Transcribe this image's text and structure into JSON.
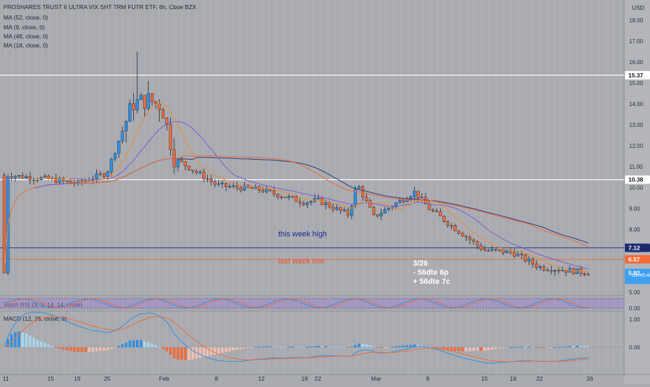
{
  "header": {
    "title": "PROSHARES TRUST II ULTRA VIX SHT TRM FUTR ETF, 6h, Cboe BZX",
    "indicators": [
      "MA (52, close, 0)",
      "MA (9, close, 0)",
      "MA (48, close, 0)",
      "MA (18, close, 0)"
    ]
  },
  "price_axis": {
    "currency": "USD",
    "ticks": [
      "18.00",
      "17.00",
      "16.00",
      "15.00",
      "14.00",
      "13.00",
      "12.00",
      "11.00",
      "10.00",
      "9.00",
      "8.00",
      "7.00",
      "6.00",
      "5.00"
    ],
    "labels": [
      {
        "text": "15.37",
        "color": "#ffffff",
        "text_color": "#131722"
      },
      {
        "text": "10.38",
        "color": "#ffffff",
        "text_color": "#131722"
      },
      {
        "text": "7.12",
        "color": "#1e2a6e",
        "text_color": "#ffffff"
      },
      {
        "text": "6.57",
        "color": "#f26b3a",
        "text_color": "#ffffff"
      },
      {
        "text": "5.92",
        "color": "#3fa0f0",
        "text_color": "#ffffff"
      }
    ],
    "countdown": "01:45:48"
  },
  "annotations": {
    "this_week_high": "this week high",
    "last_week_low": "last week low",
    "note_lines": [
      "3/26",
      "- 56dte 6p",
      "+ 56dte 7c"
    ]
  },
  "stoch": {
    "label": "Stoch RSI (3, 3, 14, 14, close)",
    "ticks": [
      "0.00"
    ]
  },
  "macd": {
    "label": "MACD (12, 26, close, 9)",
    "ticks": [
      "1.00",
      "0.00"
    ]
  },
  "time_axis": {
    "ticks": [
      "11",
      "15",
      "19",
      "25",
      "Feb",
      "8",
      "12",
      "18",
      "22",
      "Mar",
      "8",
      "15",
      "18",
      "22",
      "26"
    ]
  },
  "colors": {
    "background": "#a9abb0",
    "up": "#2f8fe0",
    "down": "#f06a3a",
    "ma52": "#2a3a7a",
    "ma9": "#7a5ccf",
    "ma48": "#f06a3a",
    "ma18": "#3a3ab0",
    "hline_white": "#ffffff",
    "hline_high": "#2a3a7a",
    "hline_low": "#f06a3a",
    "high_text": "#1e2a8e",
    "low_text": "#e8542a"
  },
  "chart_data": {
    "type": "candlestick",
    "series_name": "PROSHARES TRUST II ULTRA VIX SHT TRM FUTR ETF",
    "timeframe": "6h",
    "ylim": [
      5.0,
      18.0
    ],
    "horizontal_levels": [
      15.37,
      10.38,
      7.12,
      6.57
    ],
    "last_price": 5.92,
    "price_points": [
      {
        "x": "Jan 11",
        "y": 10.6
      },
      {
        "x": "Jan 15",
        "y": 10.4
      },
      {
        "x": "Jan 19",
        "y": 10.2
      },
      {
        "x": "Jan 25",
        "y": 10.7
      },
      {
        "x": "Jan 27",
        "y": 14.0
      },
      {
        "x": "Jan 29",
        "y": 14.2
      },
      {
        "x": "Feb 1",
        "y": 13.9
      },
      {
        "x": "Feb 3",
        "y": 11.4
      },
      {
        "x": "Feb 8",
        "y": 10.1
      },
      {
        "x": "Feb 12",
        "y": 9.9
      },
      {
        "x": "Feb 18",
        "y": 9.3
      },
      {
        "x": "Feb 22",
        "y": 9.4
      },
      {
        "x": "Feb 25",
        "y": 8.7
      },
      {
        "x": "Feb 26",
        "y": 10.2
      },
      {
        "x": "Mar 1",
        "y": 8.6
      },
      {
        "x": "Mar 5",
        "y": 9.8
      },
      {
        "x": "Mar 8",
        "y": 9.0
      },
      {
        "x": "Mar 15",
        "y": 7.0
      },
      {
        "x": "Mar 18",
        "y": 6.9
      },
      {
        "x": "Mar 22",
        "y": 6.2
      },
      {
        "x": "Mar 26",
        "y": 5.92
      }
    ],
    "stoch_ylim": [
      0,
      1
    ],
    "macd_ylim": [
      -0.6,
      1.1
    ]
  }
}
